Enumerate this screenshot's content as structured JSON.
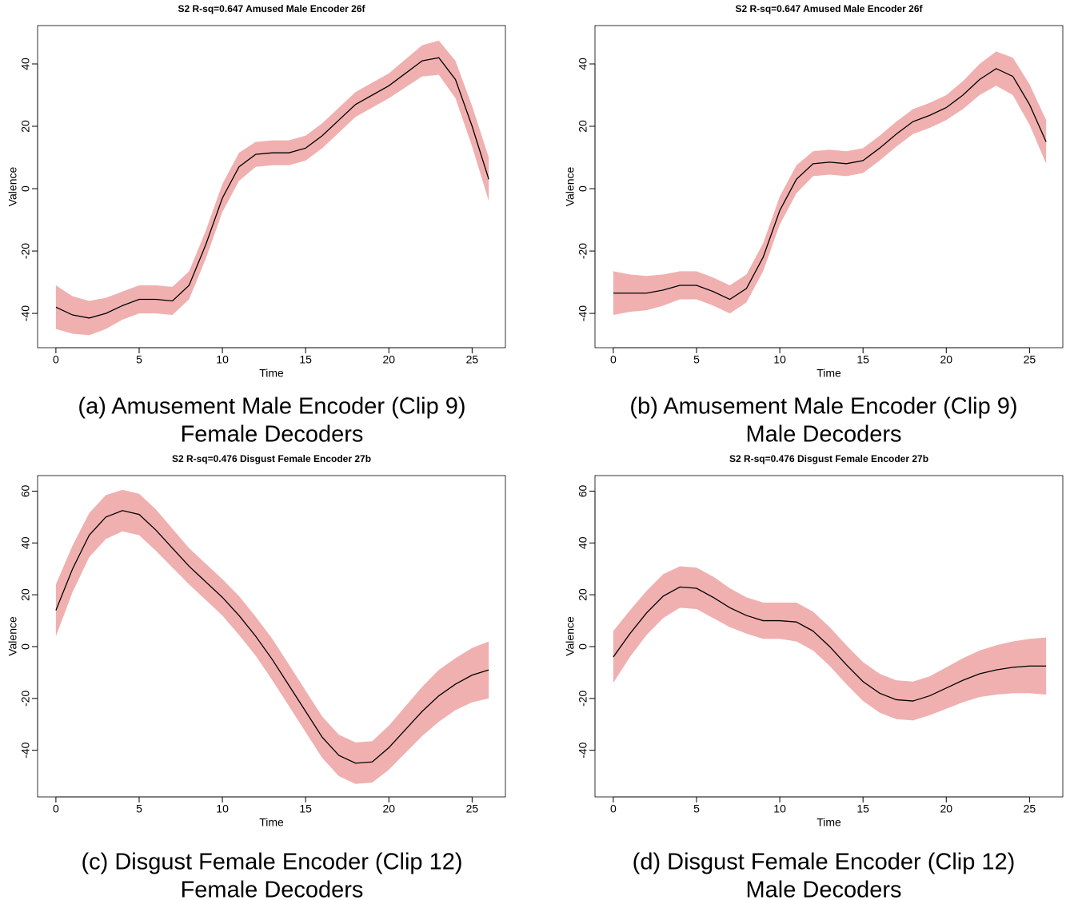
{
  "chart_data": [
    {
      "type": "line",
      "title": "S2 R-sq=0.647 Amused Male Encoder 26f",
      "xlabel": "Time",
      "ylabel": "Valence",
      "caption": [
        "(a) Amusement Male Encoder (Clip 9)",
        "Female Decoders"
      ],
      "x": [
        0,
        1,
        2,
        3,
        4,
        5,
        6,
        7,
        8,
        9,
        10,
        11,
        12,
        13,
        14,
        15,
        16,
        17,
        18,
        19,
        20,
        21,
        22,
        23,
        24,
        25,
        26
      ],
      "values": [
        -38,
        -40.5,
        -41.5,
        -40,
        -37.5,
        -35.5,
        -35.5,
        -36,
        -31,
        -18,
        -3,
        7,
        11,
        11.5,
        11.5,
        13,
        17,
        22,
        27,
        30,
        33,
        37,
        41,
        42,
        35,
        20,
        3
      ],
      "lower": [
        -45,
        -46.5,
        -47,
        -45,
        -42,
        -40,
        -40,
        -40.5,
        -35.5,
        -22.5,
        -7.5,
        2.5,
        7,
        7.5,
        7.5,
        9,
        13,
        18,
        23,
        26,
        29,
        32.5,
        36,
        36.5,
        29,
        13.5,
        -4
      ],
      "upper": [
        -31,
        -34.5,
        -36,
        -35,
        -33,
        -31,
        -31,
        -31.5,
        -26.5,
        -13.5,
        1.5,
        11.5,
        15,
        15.5,
        15.5,
        17,
        21,
        26,
        31,
        34,
        37,
        41.5,
        46,
        47.5,
        41,
        26.5,
        10
      ],
      "color": "#000000",
      "band_color": "#f0b0b0",
      "xlim": [
        -1.1,
        27
      ],
      "xticks": [
        0,
        5,
        10,
        15,
        20,
        25
      ],
      "ylim": [
        -51,
        52.3
      ],
      "yticks": [
        -40,
        -20,
        0,
        20,
        40
      ]
    },
    {
      "type": "line",
      "title": "S2 R-sq=0.647 Amused Male Encoder 26f",
      "xlabel": "Time",
      "ylabel": "Valence",
      "caption": [
        "(b) Amusement Male Encoder (Clip 9)",
        "Male Decoders"
      ],
      "x": [
        0,
        1,
        2,
        3,
        4,
        5,
        6,
        7,
        8,
        9,
        10,
        11,
        12,
        13,
        14,
        15,
        16,
        17,
        18,
        19,
        20,
        21,
        22,
        23,
        24,
        25,
        26
      ],
      "values": [
        -33.5,
        -33.5,
        -33.5,
        -32.5,
        -31,
        -31,
        -33,
        -35.5,
        -32,
        -22,
        -7,
        3,
        8,
        8.5,
        8,
        9,
        13,
        17.5,
        21.5,
        23.5,
        26,
        30,
        35,
        38.5,
        36,
        27,
        15
      ],
      "lower": [
        -40.5,
        -39.5,
        -39,
        -37.5,
        -35.5,
        -35.5,
        -37.5,
        -40,
        -36.5,
        -26.5,
        -11.5,
        -1.5,
        4,
        4.5,
        4,
        5,
        9,
        13.5,
        17.5,
        19.5,
        22,
        25.5,
        30,
        33,
        30,
        20.5,
        8
      ],
      "upper": [
        -26.5,
        -27.5,
        -28,
        -27.5,
        -26.5,
        -26.5,
        -28.5,
        -31,
        -27.5,
        -17.5,
        -2.5,
        7.5,
        12,
        12.5,
        12,
        13,
        17,
        21.5,
        25.5,
        27.5,
        30,
        34.5,
        40,
        44,
        42,
        33.5,
        22
      ],
      "color": "#000000",
      "band_color": "#f0b0b0",
      "xlim": [
        -1.1,
        27
      ],
      "xticks": [
        0,
        5,
        10,
        15,
        20,
        25
      ],
      "ylim": [
        -51,
        52.3
      ],
      "yticks": [
        -40,
        -20,
        0,
        20,
        40
      ]
    },
    {
      "type": "line",
      "title": "S2 R-sq=0.476 Disgust Female Encoder 27b",
      "xlabel": "Time",
      "ylabel": "Valence",
      "caption": [
        "(c) Disgust Female Encoder (Clip 12)",
        "Female Decoders"
      ],
      "x": [
        0,
        1,
        2,
        3,
        4,
        5,
        6,
        7,
        8,
        9,
        10,
        11,
        12,
        13,
        14,
        15,
        16,
        17,
        18,
        19,
        20,
        21,
        22,
        23,
        24,
        25,
        26
      ],
      "values": [
        14,
        30,
        43,
        50,
        52.5,
        51,
        45,
        38,
        31,
        25,
        19,
        12,
        4,
        -5,
        -15,
        -25,
        -35,
        -42,
        -45,
        -44.5,
        -39,
        -32,
        -25,
        -19,
        -14.5,
        -11,
        -9
      ],
      "lower": [
        4,
        21,
        34.5,
        41.5,
        44.5,
        43,
        37,
        30.5,
        24,
        18,
        12,
        4.5,
        -3.5,
        -13,
        -23,
        -33,
        -43,
        -50,
        -53,
        -52.5,
        -47.5,
        -41,
        -34.5,
        -29,
        -24.5,
        -21.5,
        -20
      ],
      "upper": [
        24,
        39,
        51.5,
        58.5,
        60.5,
        59,
        53,
        45.5,
        38,
        32,
        26,
        19.5,
        11.5,
        3,
        -7,
        -17,
        -27,
        -34,
        -37,
        -36.5,
        -30.5,
        -23,
        -15.5,
        -9,
        -4.5,
        -0.5,
        2
      ],
      "color": "#000000",
      "band_color": "#f0b0b0",
      "xlim": [
        -1.1,
        27
      ],
      "xticks": [
        0,
        5,
        10,
        15,
        20,
        25
      ],
      "ylim": [
        -58,
        66
      ],
      "yticks": [
        -40,
        -20,
        0,
        20,
        40,
        60
      ]
    },
    {
      "type": "line",
      "title": "S2 R-sq=0.476 Disgust Female Encoder 27b",
      "xlabel": "Time",
      "ylabel": "Valence",
      "caption": [
        "(d) Disgust Female Encoder (Clip 12)",
        "Male Decoders"
      ],
      "x": [
        0,
        1,
        2,
        3,
        4,
        5,
        6,
        7,
        8,
        9,
        10,
        11,
        12,
        13,
        14,
        15,
        16,
        17,
        18,
        19,
        20,
        21,
        22,
        23,
        24,
        25,
        26
      ],
      "values": [
        -4,
        5,
        13,
        19.5,
        23,
        22.5,
        19,
        15,
        12,
        10,
        10,
        9.5,
        6,
        0,
        -7,
        -13.5,
        -18,
        -20.5,
        -21,
        -19,
        -16,
        -13,
        -10.5,
        -9,
        -8,
        -7.5,
        -7.5
      ],
      "lower": [
        -14,
        -4,
        4.5,
        11,
        15,
        14.5,
        11,
        7.5,
        5,
        3,
        3,
        2,
        -1.5,
        -7.5,
        -14.5,
        -21,
        -25.5,
        -28,
        -28.5,
        -26.5,
        -24,
        -21.5,
        -19.5,
        -18.5,
        -18,
        -18,
        -18.5
      ],
      "upper": [
        6,
        14,
        21.5,
        28,
        31,
        30.5,
        27,
        22.5,
        19,
        17,
        17,
        17,
        13.5,
        7.5,
        0.5,
        -6,
        -10.5,
        -13,
        -13.5,
        -11.5,
        -8,
        -4.5,
        -1.5,
        0.5,
        2,
        3,
        3.5
      ],
      "color": "#000000",
      "band_color": "#f0b0b0",
      "xlim": [
        -1.1,
        27
      ],
      "xticks": [
        0,
        5,
        10,
        15,
        20,
        25
      ],
      "ylim": [
        -58,
        66
      ],
      "yticks": [
        -40,
        -20,
        0,
        20,
        40,
        60
      ]
    }
  ]
}
